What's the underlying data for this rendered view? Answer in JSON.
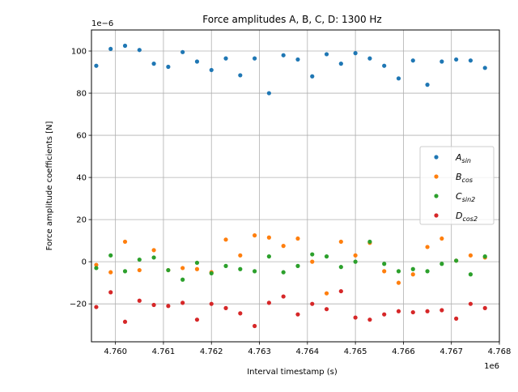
{
  "chart_data": {
    "type": "scatter",
    "title": "Force amplitudes A, B, C, D: 1300 Hz",
    "xlabel": "Interval timestamp (s)",
    "ylabel": "Force amplitude coefficients [N]",
    "x_offset_label": "1e6",
    "y_offset_label": "1e−6",
    "xlim": [
      4759500,
      4768000
    ],
    "ylim": [
      -38,
      110
    ],
    "x_ticks": [
      4760000,
      4761000,
      4762000,
      4763000,
      4764000,
      4765000,
      4766000,
      4767000,
      4768000
    ],
    "x_tick_labels": [
      "4.760",
      "4.761",
      "4.762",
      "4.763",
      "4.764",
      "4.765",
      "4.766",
      "4.767",
      "4.768"
    ],
    "y_ticks": [
      -20,
      0,
      20,
      40,
      60,
      80,
      100
    ],
    "y_tick_labels": [
      "−20",
      "0",
      "20",
      "40",
      "60",
      "80",
      "100"
    ],
    "grid": true,
    "legend_position": "center-right",
    "x": [
      4759600,
      4759900,
      4760200,
      4760500,
      4760800,
      4761100,
      4761400,
      4761700,
      4762000,
      4762300,
      4762600,
      4762900,
      4763200,
      4763500,
      4763800,
      4764100,
      4764400,
      4764700,
      4765000,
      4765300,
      4765600,
      4765900,
      4766200,
      4766500,
      4766800,
      4767100,
      4767400,
      4767700
    ],
    "series": [
      {
        "name": "A",
        "subscript": "sin",
        "color": "#1f77b4",
        "values": [
          93,
          101,
          102.5,
          100.5,
          94,
          92.5,
          99.5,
          95,
          91,
          96.5,
          88.5,
          96.5,
          80,
          98,
          96,
          88,
          98.5,
          94,
          99,
          96.5,
          93,
          87,
          95.5,
          84,
          95,
          96,
          95.5,
          92
        ]
      },
      {
        "name": "B",
        "subscript": "cos",
        "color": "#ff7f0e",
        "values": [
          -1.5,
          -5,
          9.5,
          -4,
          5.5,
          -4,
          -3,
          -3.5,
          -5,
          10.5,
          3,
          12.5,
          11.5,
          7.5,
          11,
          0,
          -15,
          9.5,
          3,
          9,
          -4.5,
          -10,
          -6,
          7,
          11,
          0.5,
          3,
          2
        ]
      },
      {
        "name": "C",
        "subscript": "sin2",
        "color": "#2ca02c",
        "values": [
          -3,
          3,
          -4.5,
          1,
          2,
          -4,
          -8.5,
          -0.5,
          -5.5,
          -2,
          -3.5,
          -4.5,
          2.5,
          -5,
          -2,
          3.5,
          2.5,
          -2.5,
          0,
          9.5,
          -1,
          -4.5,
          -3.5,
          -4.5,
          -1,
          0.5,
          -6,
          2.5
        ]
      },
      {
        "name": "D",
        "subscript": "cos2",
        "color": "#d62728",
        "values": [
          -21.5,
          -14.5,
          -28.5,
          -18.5,
          -20.5,
          -21,
          -19.5,
          -27.5,
          -20,
          -22,
          -24.5,
          -30.5,
          -19.5,
          -16.5,
          -25,
          -20,
          -22.5,
          -14,
          -26.5,
          -27.5,
          -25,
          -23.5,
          -24,
          -23.5,
          -23,
          -27,
          -20,
          -22
        ]
      }
    ]
  }
}
